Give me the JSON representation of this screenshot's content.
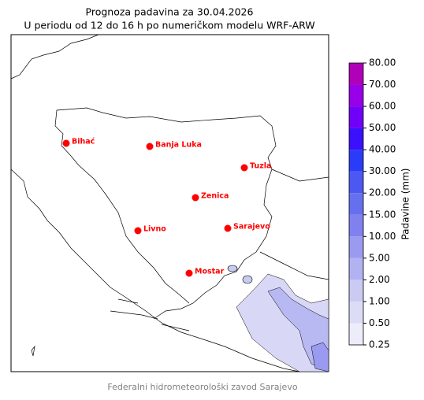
{
  "header": {
    "title": "Prognoza padavina za 30.04.2026",
    "subtitle": "U periodu od 12 do 16 h po numeričkom modelu WRF-ARW"
  },
  "cities": [
    {
      "name": "Bihać"
    },
    {
      "name": "Banja Luka"
    },
    {
      "name": "Tuzla"
    },
    {
      "name": "Zenica"
    },
    {
      "name": "Livno"
    },
    {
      "name": "Sarajevo"
    },
    {
      "name": "Mostar"
    }
  ],
  "city_color": "#ff0000",
  "colorbar": {
    "label": "Padavine (mm)",
    "ticks": [
      {
        "value": 0.25,
        "label": "0.25"
      },
      {
        "value": 0.5,
        "label": "0.50"
      },
      {
        "value": 1,
        "label": "1.00"
      },
      {
        "value": 2,
        "label": "2.00"
      },
      {
        "value": 5,
        "label": "5.00"
      },
      {
        "value": 10,
        "label": "10.00"
      },
      {
        "value": 15,
        "label": "15.00"
      },
      {
        "value": 20,
        "label": "20.00"
      },
      {
        "value": 30,
        "label": "30.00"
      },
      {
        "value": 40,
        "label": "40.00"
      },
      {
        "value": 50,
        "label": "50.00"
      },
      {
        "value": 60,
        "label": "60.00"
      },
      {
        "value": 70,
        "label": "70.00"
      },
      {
        "value": 80,
        "label": "80.00"
      }
    ],
    "colors": [
      "#ececfb",
      "#dcdcf7",
      "#cacaf3",
      "#b2b2f2",
      "#9a9af0",
      "#8080ee",
      "#6670ef",
      "#4c58f2",
      "#2a3cf8",
      "#3a10ff",
      "#7000f8",
      "#9800e8",
      "#b000b8"
    ]
  },
  "footer": "Federalni hidrometeorološki zavod Sarajevo"
}
